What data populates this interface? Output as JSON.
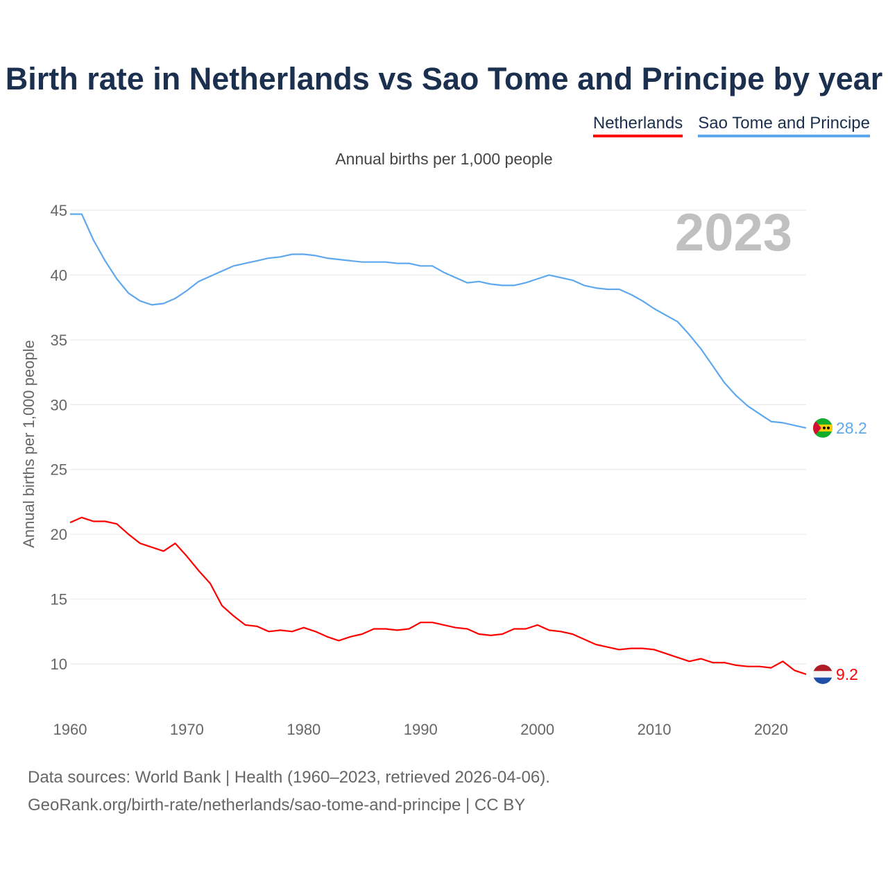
{
  "title": "Birth rate in Netherlands vs Sao Tome and Principe by year",
  "subtitle": "Annual births per 1,000 people",
  "watermark_year": "2023",
  "footer": {
    "line1": "Data sources: World Bank | Health (1960–2023, retrieved 2026-04-06).",
    "line2": "GeoRank.org/birth-rate/netherlands/sao-tome-and-principe | CC BY"
  },
  "chart_data": {
    "type": "line",
    "title": "Birth rate in Netherlands vs Sao Tome and Principe by year",
    "ylabel": "Annual births per 1,000 people",
    "xlabel": "",
    "xlim": [
      1960,
      2023
    ],
    "ylim": [
      7,
      45
    ],
    "yticks": [
      10,
      15,
      20,
      25,
      30,
      35,
      40,
      45
    ],
    "xticks": [
      1960,
      1970,
      1980,
      1990,
      2000,
      2010,
      2020
    ],
    "grid": true,
    "legend_position": "top-right",
    "x_start": 1960,
    "series": [
      {
        "name": "Netherlands",
        "color": "#ff0000",
        "end_label": "9.2",
        "flag": "netherlands-flag",
        "values": [
          20.9,
          21.3,
          21.0,
          21.0,
          20.8,
          20.0,
          19.3,
          19.0,
          18.7,
          19.3,
          18.3,
          17.2,
          16.2,
          14.5,
          13.7,
          13.0,
          12.9,
          12.5,
          12.6,
          12.5,
          12.8,
          12.5,
          12.1,
          11.8,
          12.1,
          12.3,
          12.7,
          12.7,
          12.6,
          12.7,
          13.2,
          13.2,
          13.0,
          12.8,
          12.7,
          12.3,
          12.2,
          12.3,
          12.7,
          12.7,
          13.0,
          12.6,
          12.5,
          12.3,
          11.9,
          11.5,
          11.3,
          11.1,
          11.2,
          11.2,
          11.1,
          10.8,
          10.5,
          10.2,
          10.4,
          10.1,
          10.1,
          9.9,
          9.8,
          9.8,
          9.7,
          10.2,
          9.5,
          9.2
        ]
      },
      {
        "name": "Sao Tome and Principe",
        "color": "#5ea8ee",
        "end_label": "28.2",
        "flag": "sao-tome-flag",
        "values": [
          44.7,
          44.7,
          42.7,
          41.1,
          39.7,
          38.6,
          38.0,
          37.7,
          37.8,
          38.2,
          38.8,
          39.5,
          39.9,
          40.3,
          40.7,
          40.9,
          41.1,
          41.3,
          41.4,
          41.6,
          41.6,
          41.5,
          41.3,
          41.2,
          41.1,
          41.0,
          41.0,
          41.0,
          40.9,
          40.9,
          40.7,
          40.7,
          40.2,
          39.8,
          39.4,
          39.5,
          39.3,
          39.2,
          39.2,
          39.4,
          39.7,
          40.0,
          39.8,
          39.6,
          39.2,
          39.0,
          38.9,
          38.9,
          38.5,
          38.0,
          37.4,
          36.9,
          36.4,
          35.4,
          34.3,
          33.0,
          31.7,
          30.7,
          29.9,
          29.3,
          28.7,
          28.6,
          28.4,
          28.2
        ]
      }
    ]
  }
}
